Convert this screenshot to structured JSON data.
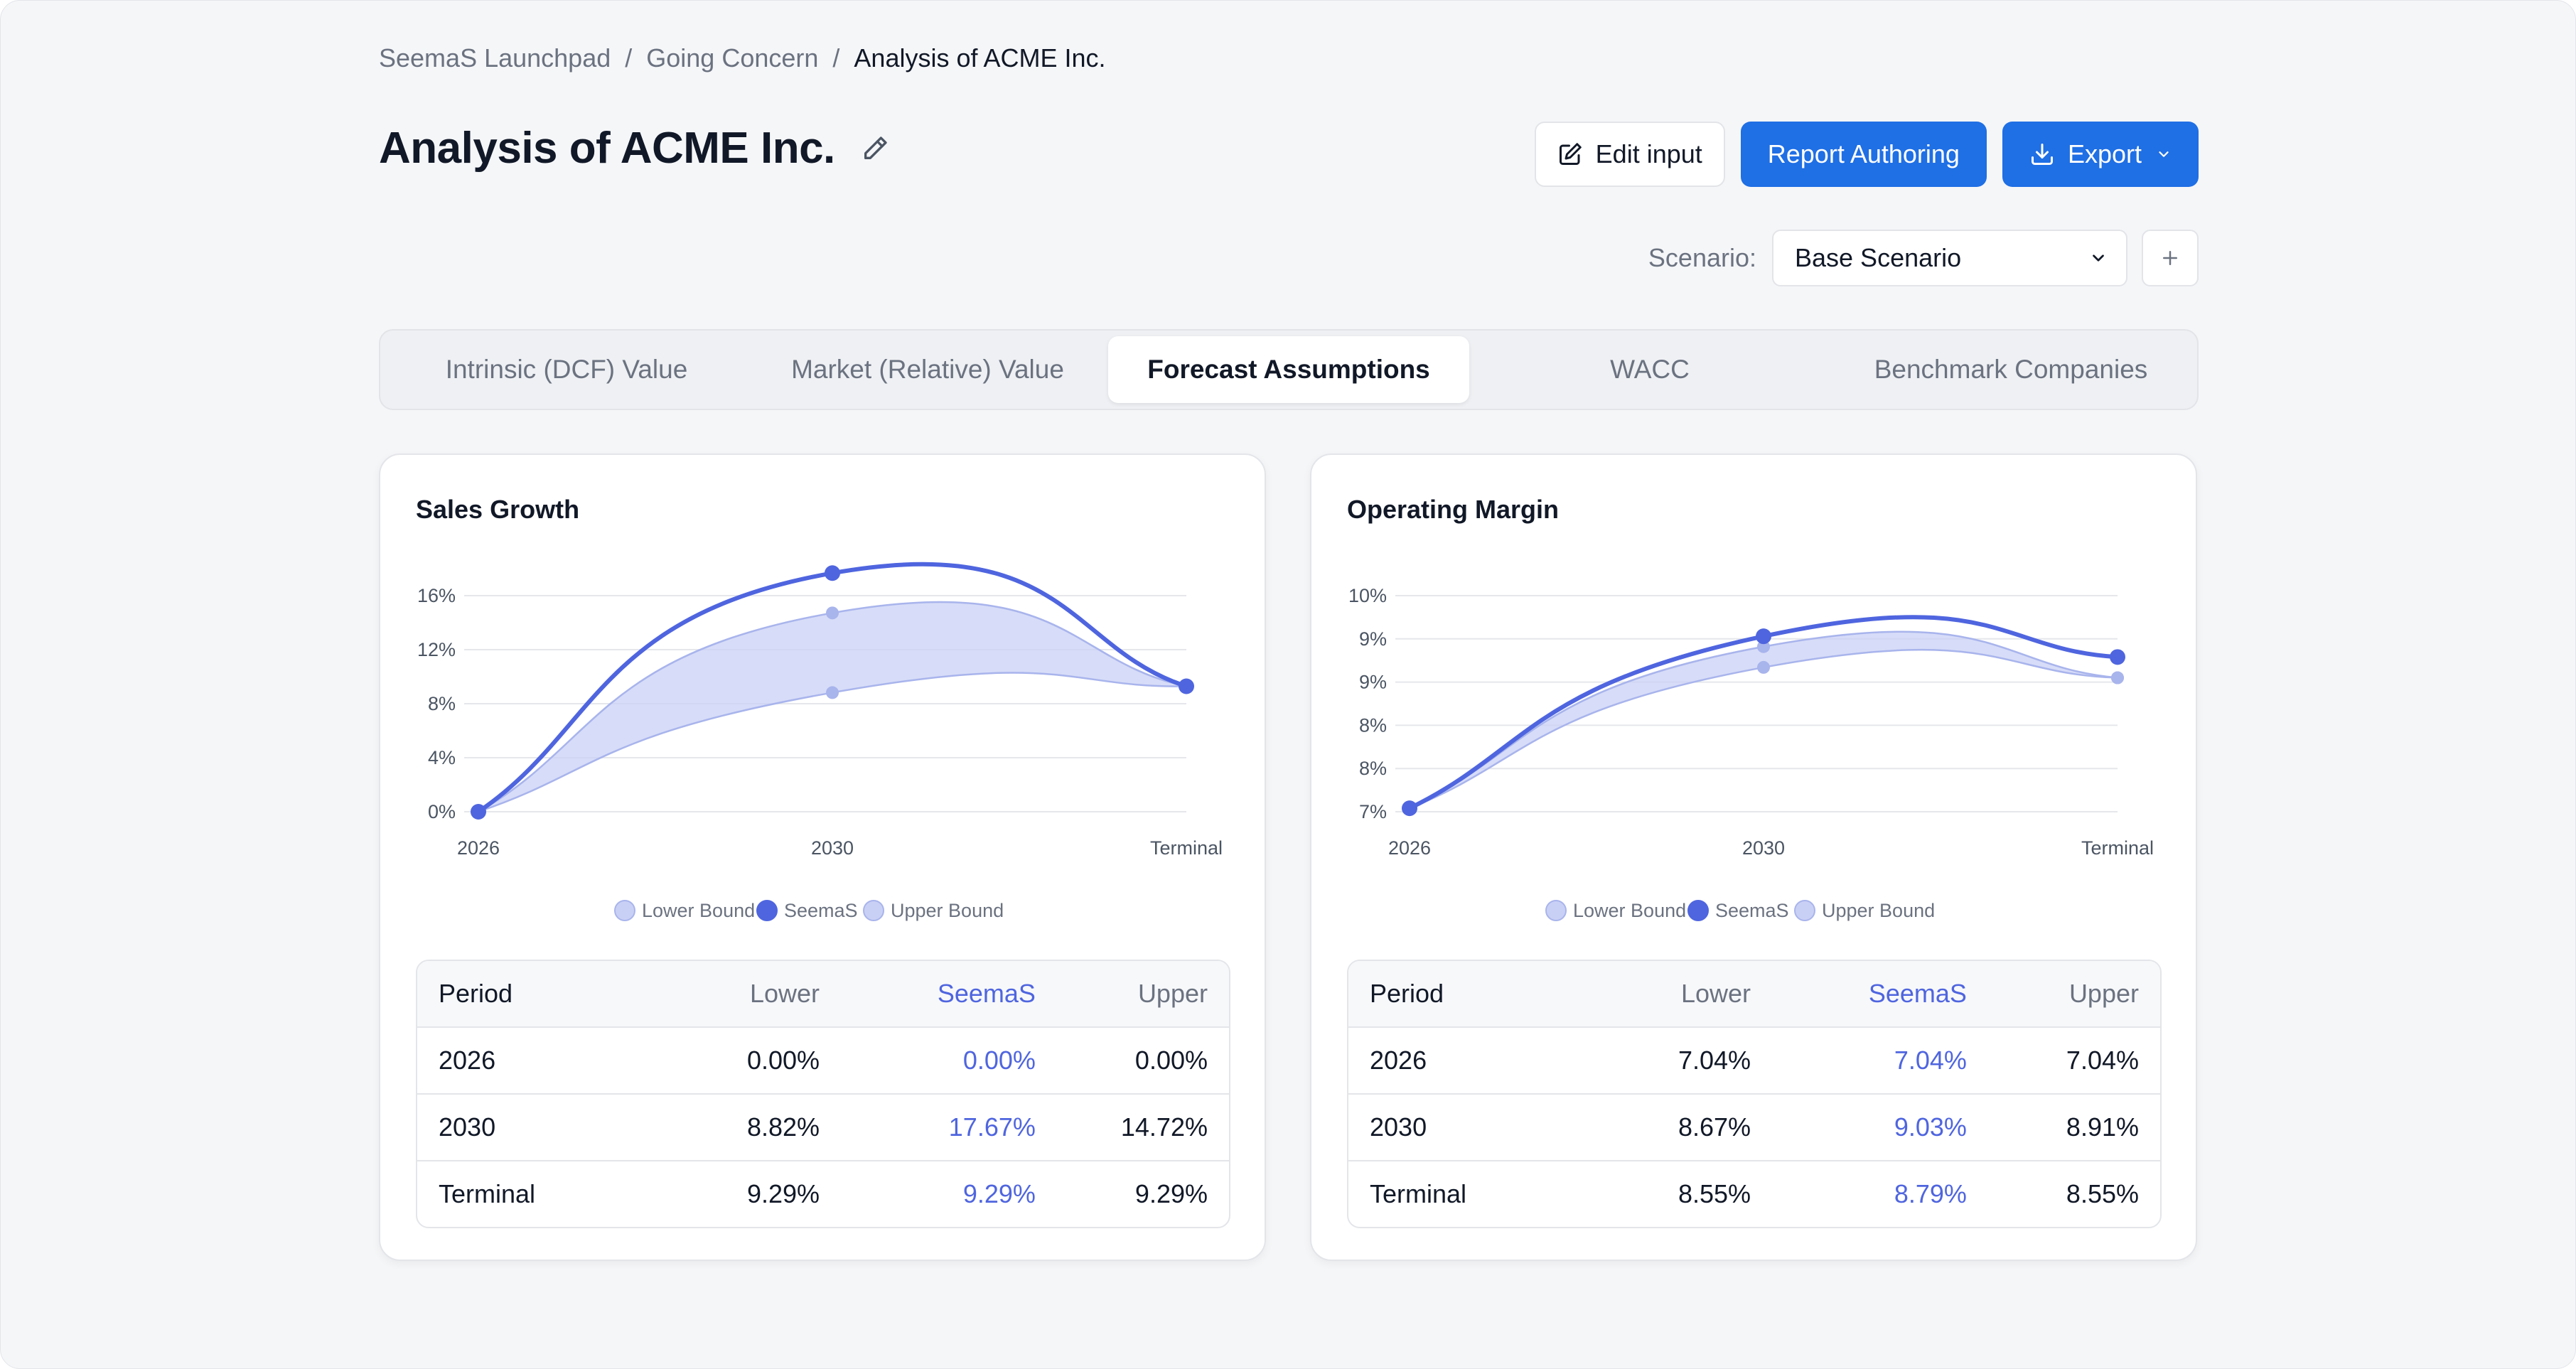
{
  "breadcrumb": [
    "SeemaS Launchpad",
    "Going Concern",
    "Analysis of ACME Inc."
  ],
  "page_title": "Analysis of ACME Inc.",
  "actions": {
    "edit": "Edit input",
    "report": "Report Authoring",
    "export": "Export"
  },
  "scenario": {
    "label": "Scenario:",
    "value": "Base Scenario"
  },
  "tabs": [
    "Intrinsic (DCF) Value",
    "Market (Relative) Value",
    "Forecast Assumptions",
    "WACC",
    "Benchmark Companies"
  ],
  "active_tab": "Forecast Assumptions",
  "colors": {
    "primary": "#1f6fe5",
    "seemas": "#4f65df",
    "band": "#c9d0f5",
    "bound_dot": "#a8b4ec"
  },
  "legend": [
    "Lower Bound",
    "SeemaS",
    "Upper Bound"
  ],
  "table_headers": [
    "Period",
    "Lower",
    "SeemaS",
    "Upper"
  ],
  "sales": {
    "title": "Sales Growth",
    "rows": [
      [
        "2026",
        "0.00%",
        "0.00%",
        "0.00%"
      ],
      [
        "2030",
        "8.82%",
        "17.67%",
        "14.72%"
      ],
      [
        "Terminal",
        "9.29%",
        "9.29%",
        "9.29%"
      ]
    ]
  },
  "margin": {
    "title": "Operating Margin",
    "rows": [
      [
        "2026",
        "7.04%",
        "7.04%",
        "7.04%"
      ],
      [
        "2030",
        "8.67%",
        "9.03%",
        "8.91%"
      ],
      [
        "Terminal",
        "8.55%",
        "8.79%",
        "8.55%"
      ]
    ]
  },
  "chart_data": [
    {
      "type": "area",
      "title": "Sales Growth",
      "x": [
        "2026",
        "2030",
        "Terminal"
      ],
      "y_ticks": [
        "0%",
        "4%",
        "8%",
        "12%",
        "16%"
      ],
      "ylim": [
        0,
        16
      ],
      "series": [
        {
          "name": "Lower Bound",
          "values": [
            0.0,
            8.82,
            9.29
          ]
        },
        {
          "name": "SeemaS",
          "values": [
            0.0,
            17.67,
            9.29
          ]
        },
        {
          "name": "Upper Bound",
          "values": [
            0.0,
            14.72,
            9.29
          ]
        }
      ]
    },
    {
      "type": "area",
      "title": "Operating Margin",
      "x": [
        "2026",
        "2030",
        "Terminal"
      ],
      "y_ticks": [
        "7%",
        "8%",
        "8%",
        "9%",
        "9%",
        "10%"
      ],
      "ylim": [
        7,
        9.5
      ],
      "series": [
        {
          "name": "Lower Bound",
          "values": [
            7.04,
            8.67,
            8.55
          ]
        },
        {
          "name": "SeemaS",
          "values": [
            7.04,
            9.03,
            8.79
          ]
        },
        {
          "name": "Upper Bound",
          "values": [
            7.04,
            8.91,
            8.55
          ]
        }
      ]
    }
  ]
}
